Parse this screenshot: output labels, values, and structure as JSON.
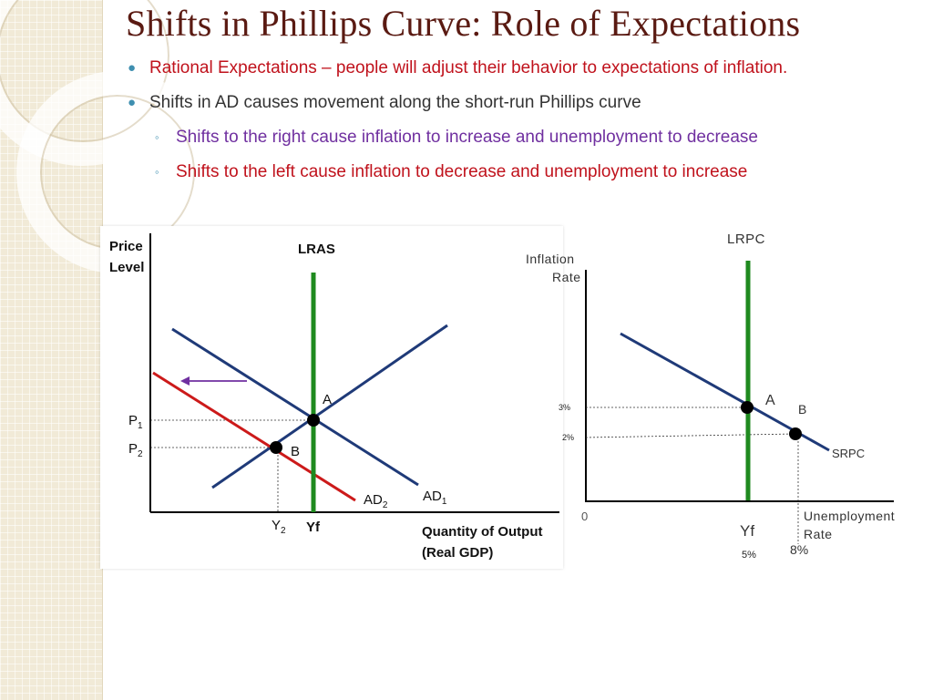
{
  "slide": {
    "title": "Shifts in Phillips Curve: Role of Expectations",
    "bullets": [
      {
        "text": "Rational Expectations – people will adjust their behavior to expectations of inflation.",
        "level": 1,
        "color": "#c0121c"
      },
      {
        "text": "Shifts in AD causes movement along the short-run Phillips curve",
        "level": 1,
        "color": "#333333"
      },
      {
        "text": "Shifts to the right cause inflation to increase and unemployment to decrease",
        "level": 2,
        "color": "#7030a0"
      },
      {
        "text": "Shifts to the left cause inflation to decrease and unemployment to increase",
        "level": 2,
        "color": "#c0121c"
      }
    ]
  },
  "ad_as_diagram": {
    "y_axis_label_1": "Price",
    "y_axis_label_2": "Level",
    "x_axis_label_1": "Quantity of Output",
    "x_axis_label_2": "(Real GDP)",
    "lras_label": "LRAS",
    "ad1_label": "AD",
    "ad1_sub": "1",
    "ad2_label": "AD",
    "ad2_sub": "2",
    "p1_label": "P",
    "p1_sub": "1",
    "p2_label": "P",
    "p2_sub": "2",
    "y2_label": "Y",
    "y2_sub": "2",
    "yf_label": "Yf",
    "point_a": "A",
    "point_b": "B",
    "colors": {
      "lras": "#1f8a1f",
      "ad1": "#1f3a78",
      "sras": "#1f3a78",
      "ad2": "#cc1a1a",
      "shift_arrow": "#7030a0"
    }
  },
  "phillips_diagram": {
    "y_axis_label_1": "Inflation",
    "y_axis_label_2": "Rate",
    "x_axis_label_1": "Unemployment",
    "x_axis_label_2": "Rate",
    "lrpc_label": "LRPC",
    "srpc_label": "SRPC",
    "origin_label": "0",
    "inflation_3": "3%",
    "inflation_2": "2%",
    "yf_label": "Yf",
    "unemployment_5": "5%",
    "unemployment_8": "8%",
    "point_a": "A",
    "point_b": "B",
    "colors": {
      "lrpc": "#1f8a1f",
      "srpc": "#1f3a78"
    }
  }
}
